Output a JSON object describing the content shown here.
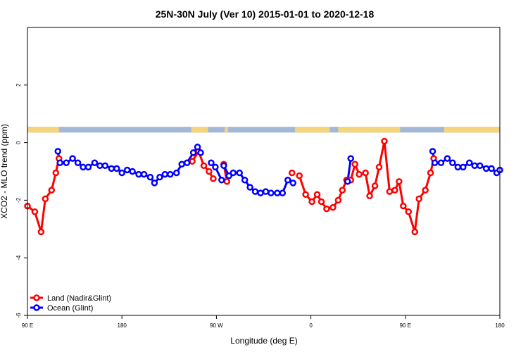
{
  "chart_data": {
    "type": "line",
    "title": "25N-30N July (Ver 10)   2015-01-01 to 2020-12-18",
    "xlabel": "Longitude (deg E)",
    "ylabel": "XCO2 - MLO trend (ppm)",
    "xlim": [
      90,
      540
    ],
    "ylim": [
      -6,
      4
    ],
    "x_ticks": [
      {
        "value": 90,
        "label": "90 E"
      },
      {
        "value": 180,
        "label": "180"
      },
      {
        "value": 270,
        "label": "90 W"
      },
      {
        "value": 360,
        "label": "0"
      },
      {
        "value": 450,
        "label": "90 E"
      },
      {
        "value": 540,
        "label": "180"
      }
    ],
    "y_ticks": [
      {
        "value": -6,
        "label": "-6"
      },
      {
        "value": -4,
        "label": "-4"
      },
      {
        "value": -2,
        "label": "-2"
      },
      {
        "value": 0,
        "label": "0"
      },
      {
        "value": 2,
        "label": "2"
      }
    ],
    "legend_position": "bottom-left",
    "surface_band": {
      "y_range": [
        0.35,
        0.55
      ],
      "land_color": "#f5d57a",
      "ocean_color": "#a3b8d8",
      "land_segments": [
        [
          90,
          120
        ],
        [
          246,
          262
        ],
        [
          278,
          281
        ],
        [
          345,
          378
        ],
        [
          386,
          445
        ],
        [
          487,
          540
        ]
      ]
    },
    "series": [
      {
        "name": "Land (Nadir&Glint)",
        "color": "#ff0000",
        "segments": [
          [
            [
              90,
              -2.2
            ],
            [
              97,
              -2.4
            ],
            [
              103,
              -3.1
            ],
            [
              107,
              -1.95
            ],
            [
              113,
              -1.65
            ],
            [
              117,
              -1.05
            ],
            [
              120,
              -0.55
            ]
          ],
          [
            [
              247,
              -0.65
            ],
            [
              253,
              -0.3
            ],
            [
              258,
              -0.8
            ],
            [
              263,
              -1.0
            ],
            [
              267,
              -1.25
            ]
          ],
          [
            [
              277,
              -0.75
            ],
            [
              280,
              -1.35
            ]
          ],
          [
            [
              342,
              -1.05
            ]
          ],
          [
            [
              349,
              -1.15
            ],
            [
              355,
              -1.8
            ],
            [
              361,
              -2.05
            ],
            [
              366,
              -1.8
            ],
            [
              370,
              -2.05
            ],
            [
              375,
              -2.3
            ],
            [
              381,
              -2.25
            ],
            [
              386,
              -2.0
            ],
            [
              390,
              -1.65
            ],
            [
              394,
              -1.3
            ],
            [
              398,
              -1.3
            ],
            [
              402,
              -0.75
            ],
            [
              406,
              -1.1
            ],
            [
              412,
              -1.05
            ],
            [
              416,
              -1.85
            ],
            [
              421,
              -1.5
            ],
            [
              425,
              -0.85
            ],
            [
              430,
              0.05
            ],
            [
              435,
              -1.7
            ],
            [
              440,
              -1.65
            ],
            [
              444,
              -1.35
            ],
            [
              448,
              -2.2
            ],
            [
              453,
              -2.4
            ],
            [
              459,
              -3.1
            ],
            [
              463,
              -1.95
            ],
            [
              469,
              -1.65
            ],
            [
              474,
              -1.05
            ],
            [
              477,
              -0.55
            ]
          ]
        ]
      },
      {
        "name": "Ocean (Glint)",
        "color": "#0000ff",
        "segments": [
          [
            [
              119,
              -0.3
            ],
            [
              121,
              -0.7
            ],
            [
              127,
              -0.7
            ],
            [
              133,
              -0.55
            ],
            [
              138,
              -0.7
            ],
            [
              143,
              -0.85
            ],
            [
              148,
              -0.85
            ],
            [
              154,
              -0.7
            ],
            [
              159,
              -0.8
            ],
            [
              164,
              -0.8
            ],
            [
              170,
              -0.9
            ],
            [
              175,
              -0.9
            ],
            [
              180,
              -1.05
            ],
            [
              185,
              -0.95
            ],
            [
              190,
              -1.0
            ],
            [
              196,
              -1.1
            ],
            [
              201,
              -1.1
            ],
            [
              207,
              -1.2
            ],
            [
              211,
              -1.4
            ],
            [
              216,
              -1.2
            ],
            [
              221,
              -1.1
            ],
            [
              226,
              -1.1
            ],
            [
              232,
              -1.05
            ],
            [
              237,
              -0.75
            ],
            [
              242,
              -0.7
            ],
            [
              248,
              -0.35
            ],
            [
              252,
              -0.15
            ],
            [
              255,
              -0.35
            ]
          ],
          [
            [
              265,
              -0.7
            ],
            [
              269,
              -0.85
            ],
            [
              275,
              -1.3
            ]
          ],
          [
            [
              277,
              -0.8
            ],
            [
              282,
              -1.15
            ],
            [
              286,
              -1.05
            ],
            [
              292,
              -1.05
            ],
            [
              297,
              -1.3
            ],
            [
              302,
              -1.55
            ],
            [
              307,
              -1.7
            ],
            [
              312,
              -1.75
            ],
            [
              317,
              -1.7
            ],
            [
              322,
              -1.75
            ],
            [
              328,
              -1.75
            ],
            [
              333,
              -1.75
            ],
            [
              338,
              -1.3
            ],
            [
              343,
              -1.4
            ]
          ],
          [
            [
              395,
              -1.35
            ],
            [
              398,
              -0.55
            ]
          ],
          [
            [
              476,
              -0.3
            ],
            [
              478,
              -0.7
            ],
            [
              484,
              -0.7
            ],
            [
              490,
              -0.55
            ],
            [
              495,
              -0.7
            ],
            [
              500,
              -0.85
            ],
            [
              505,
              -0.85
            ],
            [
              511,
              -0.7
            ],
            [
              516,
              -0.8
            ],
            [
              521,
              -0.8
            ],
            [
              527,
              -0.9
            ],
            [
              532,
              -0.9
            ],
            [
              537,
              -1.05
            ],
            [
              540,
              -0.95
            ]
          ]
        ]
      }
    ]
  }
}
